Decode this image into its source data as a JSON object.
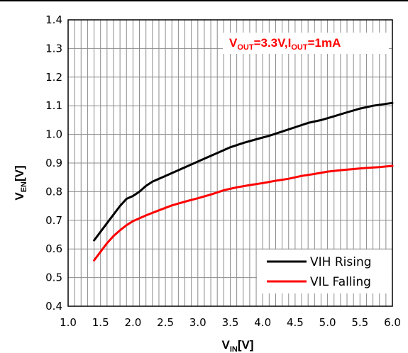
{
  "chart_data": {
    "type": "line",
    "xlabel": {
      "main": "V",
      "sub": "IN",
      "unit": "[V]"
    },
    "ylabel": {
      "main": "V",
      "sub": "EN",
      "unit": "[V]"
    },
    "xlim": [
      1.0,
      6.0
    ],
    "ylim": [
      0.4,
      1.4
    ],
    "xticks": [
      "1.0",
      "1.5",
      "2.0",
      "2.5",
      "3.0",
      "3.5",
      "4.0",
      "4.5",
      "5.0",
      "5.5",
      "6.0"
    ],
    "yticks": [
      "0.4",
      "0.5",
      "0.6",
      "0.7",
      "0.8",
      "0.9",
      "1.0",
      "1.1",
      "1.2",
      "1.3",
      "1.4"
    ],
    "grid": true,
    "annotation": {
      "color": "#ff0000",
      "parts": [
        {
          "t": "V",
          "sub": false
        },
        {
          "t": "OUT",
          "sub": true
        },
        {
          "t": "=3.3V,I",
          "sub": false
        },
        {
          "t": "OUT",
          "sub": true
        },
        {
          "t": "=1mA",
          "sub": false
        }
      ]
    },
    "legend_position": "bottom-right",
    "series": [
      {
        "name": "VIH Rising",
        "color": "#000000",
        "x": [
          1.4,
          1.5,
          1.6,
          1.7,
          1.8,
          1.9,
          2.0,
          2.1,
          2.2,
          2.3,
          2.5,
          2.7,
          2.9,
          3.1,
          3.3,
          3.5,
          3.7,
          3.9,
          4.1,
          4.3,
          4.5,
          4.7,
          4.9,
          5.1,
          5.3,
          5.5,
          5.7,
          6.0
        ],
        "values": [
          0.63,
          0.66,
          0.69,
          0.72,
          0.75,
          0.775,
          0.785,
          0.8,
          0.82,
          0.835,
          0.855,
          0.875,
          0.895,
          0.915,
          0.935,
          0.955,
          0.97,
          0.983,
          0.995,
          1.01,
          1.025,
          1.04,
          1.05,
          1.063,
          1.077,
          1.09,
          1.1,
          1.11
        ]
      },
      {
        "name": "VIL Falling",
        "color": "#ff0000",
        "x": [
          1.4,
          1.5,
          1.6,
          1.7,
          1.8,
          1.9,
          2.0,
          2.2,
          2.4,
          2.6,
          2.8,
          3.0,
          3.2,
          3.4,
          3.6,
          3.8,
          4.0,
          4.2,
          4.4,
          4.6,
          4.8,
          5.0,
          5.2,
          5.4,
          5.6,
          5.8,
          6.0
        ],
        "values": [
          0.56,
          0.59,
          0.62,
          0.645,
          0.665,
          0.683,
          0.697,
          0.717,
          0.735,
          0.752,
          0.765,
          0.777,
          0.79,
          0.805,
          0.815,
          0.823,
          0.83,
          0.838,
          0.845,
          0.855,
          0.862,
          0.87,
          0.875,
          0.879,
          0.883,
          0.886,
          0.89
        ]
      }
    ]
  }
}
